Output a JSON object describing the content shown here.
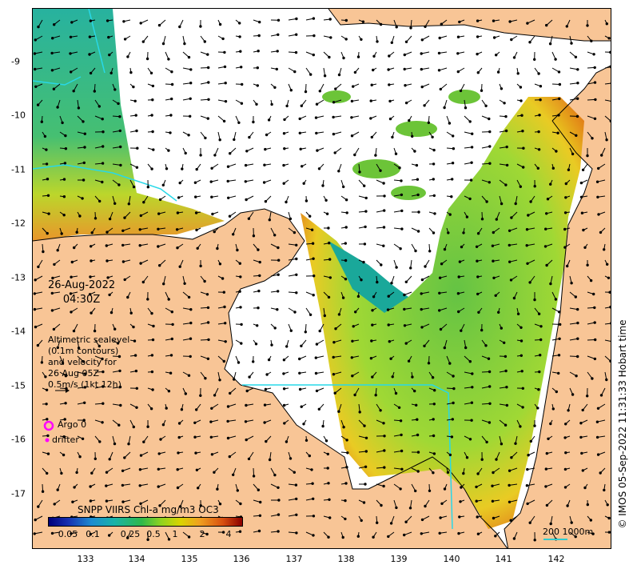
{
  "map": {
    "date": "26-Aug-2022",
    "time": "04:30Z",
    "legend_lines": [
      "Altimetric sealevel",
      "(0.1m contours)",
      "and velocity for",
      "26 Aug 05Z",
      "0.5m/s (1kt 12h)"
    ],
    "argo_label": "Argo 0",
    "drifter_label": "drifter",
    "colorbar_title": "SNPP VIIRS Chl-a mg/m3 OC3",
    "colorbar_ticks": [
      "0.05",
      "0.1",
      "0.25",
      "0.5",
      "1",
      "2",
      "4"
    ],
    "scale_label": "200 1000m",
    "copyright": "© IMOS 05-Sep-2022 11:31:33 Hobart time",
    "x_ticks": [
      "133",
      "134",
      "135",
      "136",
      "137",
      "138",
      "139",
      "140",
      "141",
      "142"
    ],
    "y_ticks": [
      "9",
      "10",
      "11",
      "12",
      "13",
      "14",
      "15",
      "16",
      "17"
    ],
    "colors": {
      "land": "#f8c596",
      "argo": "#ff00ff",
      "drifter": "#ff00ff",
      "scale_bar": "#33cccc"
    }
  }
}
